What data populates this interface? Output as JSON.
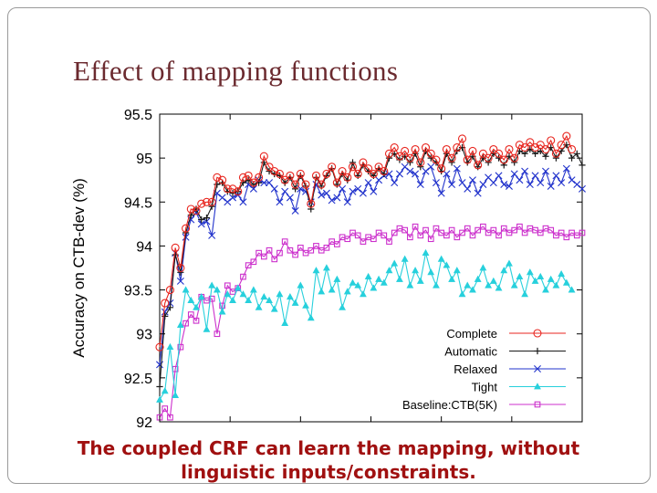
{
  "slide": {
    "title": "Effect of mapping functions",
    "caption_line1": "The coupled CRF can learn the mapping, without",
    "caption_line2": "linguistic inputs/constraints."
  },
  "chart_data": {
    "type": "line",
    "title": "",
    "xlabel": "",
    "ylabel": "Accuracy on CTB-dev (%)",
    "ylim": [
      92,
      95.5
    ],
    "yticks": [
      "92",
      "92.5",
      "93",
      "93.5",
      "94",
      "94.5",
      "95",
      "95.5"
    ],
    "x_tick_labels_visible": false,
    "legend_position": "bottom-right",
    "grid": false,
    "series": [
      {
        "name": "Complete",
        "color": "#e8261f",
        "marker": "circle",
        "x": [
          1,
          2,
          3,
          4,
          5,
          6,
          7,
          8,
          9,
          10,
          11,
          12,
          13,
          14,
          15,
          16,
          17,
          18,
          19,
          20,
          21,
          22,
          23,
          24,
          25,
          26,
          27,
          28,
          29,
          30,
          31,
          32,
          33,
          34,
          35,
          36,
          37,
          38,
          39,
          40,
          41,
          42,
          43,
          44,
          45,
          46,
          47,
          48,
          49,
          50,
          51,
          52,
          53,
          54,
          55,
          56,
          57,
          58,
          59,
          60,
          61,
          62,
          63,
          64,
          65,
          66,
          67,
          68,
          69,
          70,
          71,
          72,
          73,
          74,
          75,
          76,
          77,
          78,
          79,
          80
        ],
        "values": [
          92.85,
          93.35,
          93.5,
          93.98,
          93.75,
          94.2,
          94.42,
          94.4,
          94.48,
          94.5,
          94.5,
          94.78,
          94.75,
          94.65,
          94.65,
          94.62,
          94.78,
          94.8,
          94.72,
          94.78,
          95.02,
          94.9,
          94.85,
          94.82,
          94.75,
          94.8,
          94.7,
          94.82,
          94.7,
          94.48,
          94.8,
          94.7,
          94.82,
          94.9,
          94.72,
          94.85,
          94.78,
          94.9,
          94.82,
          94.95,
          94.88,
          94.82,
          94.9,
          94.85,
          95.05,
          95.12,
          95.02,
          95.08,
          95.0,
          95.1,
          94.95,
          95.12,
          95.05,
          94.98,
          94.88,
          95.1,
          95.0,
          95.12,
          95.22,
          94.98,
          95.08,
          94.92,
          95.05,
          95.0,
          95.1,
          95.05,
          94.98,
          95.1,
          95.0,
          95.15,
          95.12,
          95.18,
          95.12,
          95.15,
          95.1,
          95.2,
          95.05,
          95.15,
          95.25,
          95.1
        ]
      },
      {
        "name": "Automatic",
        "color": "#1a1a1a",
        "marker": "plus",
        "x": [
          1,
          2,
          3,
          4,
          5,
          6,
          7,
          8,
          9,
          10,
          11,
          12,
          13,
          14,
          15,
          16,
          17,
          18,
          19,
          20,
          21,
          22,
          23,
          24,
          25,
          26,
          27,
          28,
          29,
          30,
          31,
          32,
          33,
          34,
          35,
          36,
          37,
          38,
          39,
          40,
          41,
          42,
          43,
          44,
          45,
          46,
          47,
          48,
          49,
          50,
          51,
          52,
          53,
          54,
          55,
          56,
          57,
          58,
          59,
          60,
          61,
          62,
          63,
          64,
          65,
          66,
          67,
          68,
          69,
          70,
          71,
          72,
          73,
          74,
          75,
          76,
          77,
          78,
          79,
          80,
          81,
          82
        ],
        "values": [
          92.4,
          93.2,
          93.3,
          93.9,
          93.7,
          94.15,
          94.35,
          94.42,
          94.3,
          94.32,
          94.45,
          94.7,
          94.72,
          94.62,
          94.6,
          94.62,
          94.72,
          94.75,
          94.7,
          94.72,
          94.95,
          94.85,
          94.82,
          94.8,
          94.72,
          94.78,
          94.65,
          94.8,
          94.68,
          94.42,
          94.78,
          94.68,
          94.8,
          94.88,
          94.7,
          94.82,
          94.75,
          94.95,
          94.8,
          94.92,
          94.85,
          94.8,
          94.88,
          94.82,
          95.0,
          95.05,
          94.98,
          95.02,
          94.95,
          95.05,
          94.9,
          95.08,
          95.0,
          94.95,
          94.85,
          95.05,
          94.95,
          95.08,
          95.12,
          94.95,
          95.02,
          94.9,
          95.0,
          94.95,
          95.05,
          95.0,
          94.92,
          95.02,
          94.95,
          95.08,
          95.05,
          95.1,
          95.05,
          95.08,
          95.02,
          95.12,
          95.0,
          95.08,
          95.15,
          95.0,
          95.05,
          94.92
        ]
      },
      {
        "name": "Relaxed",
        "color": "#2233cc",
        "marker": "x",
        "x": [
          1,
          2,
          3,
          4,
          5,
          6,
          7,
          8,
          9,
          10,
          11,
          12,
          13,
          14,
          15,
          16,
          17,
          18,
          19,
          20,
          21,
          22,
          23,
          24,
          25,
          26,
          27,
          28,
          29,
          30,
          31,
          32,
          33,
          34,
          35,
          36,
          37,
          38,
          39,
          40,
          41,
          42,
          43,
          44,
          45,
          46,
          47,
          48,
          49,
          50,
          51,
          52,
          53,
          54,
          55,
          56,
          57,
          58,
          59,
          60,
          61,
          62,
          63,
          64,
          65,
          66,
          67,
          68,
          69,
          70,
          71,
          72,
          73,
          74,
          75,
          76,
          77,
          78,
          79,
          80,
          81,
          82
        ],
        "values": [
          92.65,
          93.25,
          93.35,
          93.92,
          93.6,
          94.1,
          94.3,
          94.38,
          94.25,
          94.28,
          94.12,
          94.6,
          94.55,
          94.5,
          94.55,
          94.58,
          94.5,
          94.7,
          94.65,
          94.75,
          94.72,
          94.72,
          94.65,
          94.5,
          94.62,
          94.55,
          94.4,
          94.65,
          94.62,
          94.5,
          94.7,
          94.58,
          94.6,
          94.52,
          94.55,
          94.65,
          94.5,
          94.62,
          94.65,
          94.6,
          94.72,
          94.62,
          94.75,
          94.8,
          94.82,
          94.72,
          94.82,
          94.9,
          94.85,
          94.82,
          94.7,
          94.85,
          94.9,
          94.72,
          94.6,
          94.82,
          94.7,
          94.88,
          94.72,
          94.65,
          94.75,
          94.6,
          94.7,
          94.78,
          94.72,
          94.8,
          94.7,
          94.68,
          94.82,
          94.75,
          94.85,
          94.7,
          94.8,
          94.72,
          94.85,
          94.68,
          94.8,
          94.72,
          94.88,
          94.75,
          94.7,
          94.65
        ]
      },
      {
        "name": "Tight",
        "color": "#27d0dc",
        "marker": "triangle",
        "x": [
          1,
          2,
          3,
          4,
          5,
          6,
          7,
          8,
          9,
          10,
          11,
          12,
          13,
          14,
          15,
          16,
          17,
          18,
          19,
          20,
          21,
          22,
          23,
          24,
          25,
          26,
          27,
          28,
          29,
          30,
          31,
          32,
          33,
          34,
          35,
          36,
          37,
          38,
          39,
          40,
          41,
          42,
          43,
          44,
          45,
          46,
          47,
          48,
          49,
          50,
          51,
          52,
          53,
          54,
          55,
          56,
          57,
          58,
          59,
          60,
          61,
          62,
          63,
          64,
          65,
          66,
          67,
          68,
          69,
          70,
          71,
          72,
          73,
          74,
          75,
          76,
          77,
          78,
          79,
          80
        ],
        "values": [
          92.25,
          92.35,
          92.85,
          92.3,
          93.1,
          93.5,
          93.38,
          93.3,
          93.42,
          93.05,
          93.55,
          93.5,
          93.25,
          93.45,
          93.38,
          93.52,
          93.45,
          93.38,
          93.5,
          93.3,
          93.42,
          93.38,
          93.28,
          93.45,
          93.12,
          93.42,
          93.35,
          93.55,
          93.32,
          93.18,
          93.72,
          93.48,
          93.75,
          93.5,
          93.62,
          93.3,
          93.48,
          93.58,
          93.55,
          93.45,
          93.65,
          93.52,
          93.62,
          93.58,
          93.72,
          93.8,
          93.62,
          93.85,
          93.55,
          93.72,
          93.6,
          93.92,
          93.7,
          93.55,
          93.85,
          93.78,
          93.62,
          93.72,
          93.45,
          93.55,
          93.5,
          93.62,
          93.75,
          93.55,
          93.6,
          93.52,
          93.72,
          93.8,
          93.55,
          93.65,
          93.45,
          93.7,
          93.6,
          93.65,
          93.5,
          93.62,
          93.55,
          93.68,
          93.58,
          93.5
        ]
      },
      {
        "name": "Baseline:CTB(5K)",
        "color": "#cc30cc",
        "marker": "square",
        "x": [
          1,
          2,
          3,
          4,
          5,
          6,
          7,
          8,
          9,
          10,
          11,
          12,
          13,
          14,
          15,
          16,
          17,
          18,
          19,
          20,
          21,
          22,
          23,
          24,
          25,
          26,
          27,
          28,
          29,
          30,
          31,
          32,
          33,
          34,
          35,
          36,
          37,
          38,
          39,
          40,
          41,
          42,
          43,
          44,
          45,
          46,
          47,
          48,
          49,
          50,
          51,
          52,
          53,
          54,
          55,
          56,
          57,
          58,
          59,
          60,
          61,
          62,
          63,
          64,
          65,
          66,
          67,
          68,
          69,
          70,
          71,
          72,
          73,
          74,
          75,
          76,
          77,
          78,
          79,
          80,
          81,
          82
        ],
        "values": [
          92.05,
          92.15,
          92.05,
          92.6,
          92.85,
          93.12,
          93.22,
          93.15,
          93.42,
          93.38,
          93.4,
          93.0,
          93.32,
          93.55,
          93.48,
          93.52,
          93.65,
          93.78,
          93.82,
          93.92,
          93.88,
          93.95,
          93.85,
          93.92,
          94.05,
          93.95,
          93.9,
          93.98,
          93.92,
          93.95,
          94.0,
          93.95,
          93.98,
          94.05,
          94.02,
          94.1,
          94.08,
          94.15,
          94.12,
          94.05,
          94.1,
          94.08,
          94.15,
          94.12,
          94.05,
          94.15,
          94.2,
          94.18,
          94.1,
          94.22,
          94.12,
          94.18,
          94.08,
          94.2,
          94.15,
          94.12,
          94.18,
          94.1,
          94.15,
          94.2,
          94.12,
          94.18,
          94.22,
          94.15,
          94.18,
          94.12,
          94.2,
          94.15,
          94.18,
          94.22,
          94.15,
          94.2,
          94.18,
          94.15,
          94.2,
          94.18,
          94.12,
          94.15,
          94.1,
          94.15,
          94.12,
          94.15
        ]
      }
    ]
  }
}
